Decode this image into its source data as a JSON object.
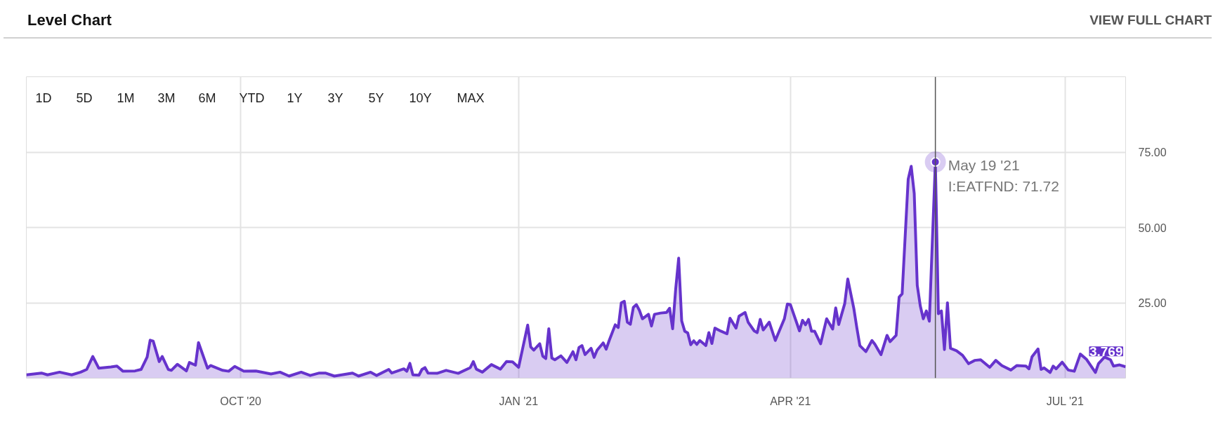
{
  "chart_data": {
    "type": "area",
    "title": "Level Chart",
    "annotations": [
      "VIEW FULL CHART",
      "1D",
      "5D",
      "1M",
      "3M",
      "6M",
      "YTD",
      "1Y",
      "3Y",
      "5Y",
      "10Y",
      "MAX",
      {
        "text": "May 19 '21\nI:EATFND: 71.72",
        "x": "2021-05-19",
        "y": 71.72
      },
      {
        "text": "3.769",
        "x": "2021-07-21",
        "y": 3.769
      }
    ],
    "x": [
      "2020-07-22",
      "2020-07-27",
      "2020-07-29",
      "2020-08-02",
      "2020-08-06",
      "2020-08-09",
      "2020-08-11",
      "2020-08-13",
      "2020-08-15",
      "2020-08-19",
      "2020-08-21",
      "2020-08-23",
      "2020-08-27",
      "2020-08-29",
      "2020-08-31",
      "2020-09-01",
      "2020-09-02",
      "2020-09-04",
      "2020-09-05",
      "2020-09-07",
      "2020-09-08",
      "2020-09-10",
      "2020-09-13",
      "2020-09-14",
      "2020-09-16",
      "2020-09-17",
      "2020-09-20",
      "2020-09-21",
      "2020-09-25",
      "2020-09-27",
      "2020-09-29",
      "2020-10-02",
      "2020-10-06",
      "2020-10-11",
      "2020-10-14",
      "2020-10-17",
      "2020-10-21",
      "2020-10-24",
      "2020-10-27",
      "2020-10-29",
      "2020-11-01",
      "2020-11-07",
      "2020-11-09",
      "2020-11-13",
      "2020-11-15",
      "2020-11-19",
      "2020-11-20",
      "2020-11-24",
      "2020-11-25",
      "2020-11-26",
      "2020-11-27",
      "2020-11-29",
      "2020-11-30",
      "2020-12-01",
      "2020-12-02",
      "2020-12-05",
      "2020-12-08",
      "2020-12-12",
      "2020-12-16",
      "2020-12-17",
      "2020-12-18",
      "2020-12-20",
      "2020-12-23",
      "2020-12-26",
      "2020-12-28",
      "2020-12-30",
      "2021-01-01",
      "2021-01-04",
      "2021-01-05",
      "2021-01-06",
      "2021-01-08",
      "2021-01-09",
      "2021-01-10",
      "2021-01-11",
      "2021-01-12",
      "2021-01-13",
      "2021-01-15",
      "2021-01-17",
      "2021-01-19",
      "2021-01-20",
      "2021-01-21",
      "2021-01-22",
      "2021-01-23",
      "2021-01-25",
      "2021-01-26",
      "2021-01-27",
      "2021-01-29",
      "2021-01-30",
      "2021-01-31",
      "2021-02-02",
      "2021-02-03",
      "2021-02-04",
      "2021-02-05",
      "2021-02-06",
      "2021-02-07",
      "2021-02-08",
      "2021-02-09",
      "2021-02-10",
      "2021-02-11",
      "2021-02-13",
      "2021-02-14",
      "2021-02-15",
      "2021-02-17",
      "2021-02-19",
      "2021-02-20",
      "2021-02-21",
      "2021-02-22",
      "2021-02-23",
      "2021-02-24",
      "2021-02-25",
      "2021-02-26",
      "2021-02-27",
      "2021-02-28",
      "2021-03-01",
      "2021-03-02",
      "2021-03-04",
      "2021-03-05",
      "2021-03-06",
      "2021-03-07",
      "2021-03-09",
      "2021-03-11",
      "2021-03-12",
      "2021-03-14",
      "2021-03-15",
      "2021-03-17",
      "2021-03-18",
      "2021-03-20",
      "2021-03-21",
      "2021-03-22",
      "2021-03-23",
      "2021-03-25",
      "2021-03-27",
      "2021-03-30",
      "2021-03-31",
      "2021-04-01",
      "2021-04-04",
      "2021-04-05",
      "2021-04-06",
      "2021-04-07",
      "2021-04-08",
      "2021-04-09",
      "2021-04-11",
      "2021-04-13",
      "2021-04-15",
      "2021-04-16",
      "2021-04-17",
      "2021-04-19",
      "2021-04-20",
      "2021-04-22",
      "2021-04-23",
      "2021-04-24",
      "2021-04-26",
      "2021-04-28",
      "2021-04-29",
      "2021-04-30",
      "2021-05-01",
      "2021-05-03",
      "2021-05-04",
      "2021-05-06",
      "2021-05-07",
      "2021-05-08",
      "2021-05-10",
      "2021-05-11",
      "2021-05-12",
      "2021-05-13",
      "2021-05-14",
      "2021-05-15",
      "2021-05-16",
      "2021-05-17",
      "2021-05-19",
      "2021-05-20",
      "2021-05-21",
      "2021-05-22",
      "2021-05-23",
      "2021-05-24",
      "2021-05-26",
      "2021-05-28",
      "2021-05-30",
      "2021-06-01",
      "2021-06-03",
      "2021-06-06",
      "2021-06-08",
      "2021-06-10",
      "2021-06-13",
      "2021-06-15",
      "2021-06-18",
      "2021-06-19",
      "2021-06-20",
      "2021-06-22",
      "2021-06-23",
      "2021-06-24",
      "2021-06-26",
      "2021-06-27",
      "2021-06-28",
      "2021-06-30",
      "2021-07-02",
      "2021-07-04",
      "2021-07-06",
      "2021-07-08",
      "2021-07-11",
      "2021-07-12",
      "2021-07-14",
      "2021-07-16",
      "2021-07-17",
      "2021-07-19",
      "2021-07-21"
    ],
    "series": [
      {
        "color": "#6633cc",
        "values": [
          1.1,
          1.7,
          1.1,
          2.0,
          1.1,
          2.0,
          2.9,
          7.2,
          3.3,
          3.7,
          4.0,
          2.3,
          2.4,
          2.9,
          7.0,
          12.6,
          12.3,
          5.5,
          7.2,
          2.9,
          2.6,
          4.6,
          2.4,
          5.2,
          4.3,
          11.8,
          3.3,
          4.2,
          2.6,
          2.3,
          3.9,
          2.3,
          2.4,
          1.4,
          2.0,
          0.7,
          2.0,
          0.9,
          1.7,
          1.7,
          0.7,
          1.7,
          0.7,
          2.0,
          0.9,
          2.9,
          1.7,
          3.1,
          2.3,
          4.9,
          1.1,
          1.0,
          2.9,
          3.5,
          1.7,
          1.6,
          2.6,
          1.6,
          3.5,
          5.5,
          3.0,
          2.0,
          4.5,
          3.0,
          5.5,
          5.4,
          3.6,
          17.6,
          10.4,
          9.3,
          11.4,
          7.3,
          6.5,
          16.4,
          6.7,
          6.1,
          7.4,
          5.2,
          8.8,
          6.1,
          10.2,
          10.8,
          7.8,
          9.9,
          6.9,
          9.3,
          11.7,
          9.6,
          12.5,
          17.7,
          16.8,
          25.0,
          25.5,
          18.6,
          17.9,
          23.5,
          24.4,
          22.5,
          19.7,
          21.2,
          17.3,
          21.2,
          21.6,
          21.8,
          23.2,
          16.4,
          29.4,
          39.8,
          19.0,
          15.6,
          15.0,
          11.1,
          12.4,
          11.2,
          12.5,
          10.8,
          15.1,
          11.5,
          16.6,
          15.6,
          14.7,
          19.9,
          16.6,
          20.6,
          21.8,
          18.6,
          15.7,
          15.1,
          19.5,
          16.0,
          18.6,
          12.5,
          19.7,
          24.6,
          24.4,
          15.7,
          19.2,
          17.7,
          19.5,
          15.6,
          15.6,
          11.4,
          19.7,
          16.3,
          23.3,
          17.8,
          24.8,
          32.9,
          23.1,
          16.7,
          10.8,
          8.8,
          12.5,
          11.2,
          9.5,
          7.8,
          14.2,
          12.1,
          14.2,
          26.9,
          28.0,
          66.0,
          70.3,
          61.3,
          30.8,
          24.0,
          19.7,
          22.3,
          18.9,
          71.72,
          21.4,
          22.3,
          9.5,
          25.0,
          9.9,
          9.1,
          7.6,
          4.8,
          5.9,
          6.1,
          3.6,
          5.9,
          4.2,
          2.7,
          4.2,
          4.0,
          3.1,
          7.1,
          9.7,
          2.9,
          3.4,
          1.9,
          4.0,
          3.1,
          5.3,
          2.7,
          2.3,
          8.0,
          6.3,
          1.9,
          4.8,
          7.0,
          6.1,
          4.0,
          4.4,
          3.769
        ]
      }
    ],
    "xlim": [
      "2020-07-22",
      "2021-07-21"
    ],
    "xticks": [
      {
        "value": "2020-10-01",
        "label": "OCT '20"
      },
      {
        "value": "2021-01-01",
        "label": "JAN '21"
      },
      {
        "value": "2021-04-01",
        "label": "APR '21"
      },
      {
        "value": "2021-07-01",
        "label": "JUL '21"
      }
    ],
    "ylim": [
      0,
      100
    ],
    "yticks": [
      {
        "value": 25,
        "label": "25.00"
      },
      {
        "value": 50,
        "label": "50.00"
      },
      {
        "value": 75,
        "label": "75.00"
      }
    ],
    "ref_lines": [
      {
        "axis": "x",
        "value": "2021-05-19",
        "color": "#555555"
      }
    ],
    "grid": true
  }
}
